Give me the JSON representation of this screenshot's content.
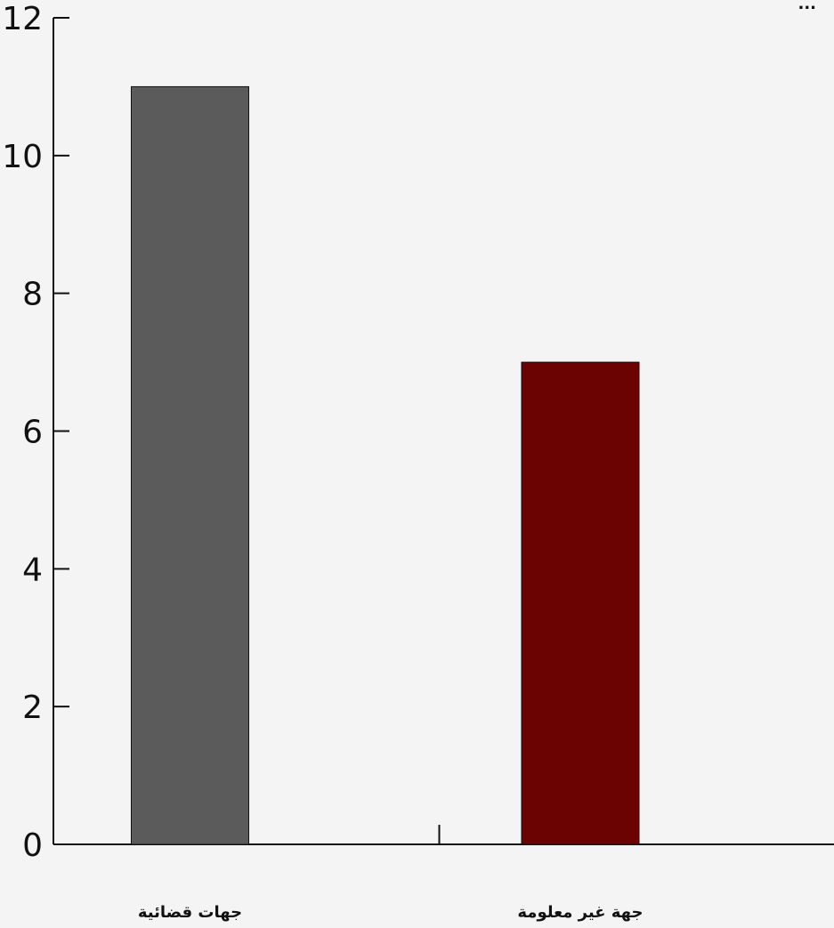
{
  "chart_data": {
    "type": "bar",
    "title": "...",
    "categories": [
      "جهات قضائية",
      "جهة غير معلومة"
    ],
    "values": [
      11,
      7
    ],
    "colors": [
      "#5b5b5b",
      "#6b0303"
    ],
    "ylim": [
      0,
      12
    ],
    "yticks": [
      "0",
      "2",
      "4",
      "6",
      "8",
      "10",
      "12"
    ],
    "grid": false
  }
}
